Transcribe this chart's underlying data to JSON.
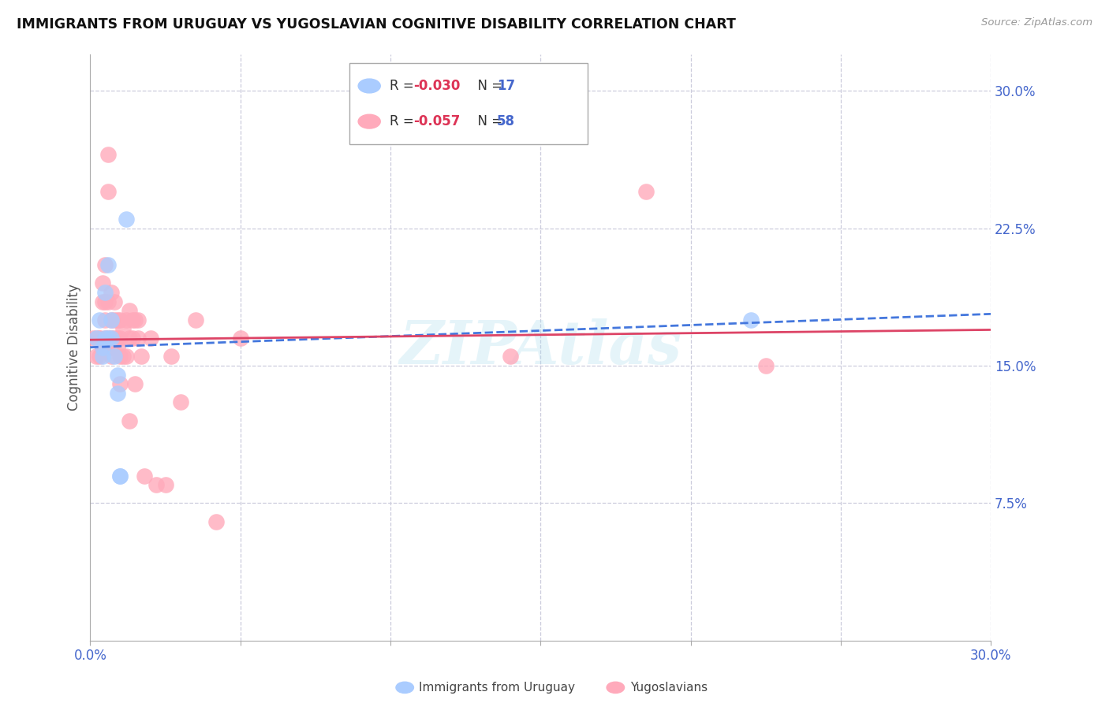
{
  "title": "IMMIGRANTS FROM URUGUAY VS YUGOSLAVIAN COGNITIVE DISABILITY CORRELATION CHART",
  "source": "Source: ZipAtlas.com",
  "ylabel": "Cognitive Disability",
  "right_ytick_vals": [
    0.3,
    0.225,
    0.15,
    0.075
  ],
  "right_ytick_labels": [
    "30.0%",
    "22.5%",
    "15.0%",
    "7.5%"
  ],
  "xmin": 0.0,
  "xmax": 0.3,
  "ymin": 0.0,
  "ymax": 0.32,
  "legend_r1": "-0.030",
  "legend_n1": "17",
  "legend_r2": "-0.057",
  "legend_n2": "58",
  "color_uruguay": "#aaccff",
  "color_yugoslavian": "#ffaabb",
  "trendline_color_uruguay": "#4477dd",
  "trendline_color_yugoslavian": "#dd4466",
  "watermark": "ZIPAtlas",
  "scatter_uruguay_x": [
    0.002,
    0.003,
    0.004,
    0.004,
    0.005,
    0.005,
    0.006,
    0.006,
    0.007,
    0.007,
    0.008,
    0.009,
    0.009,
    0.01,
    0.01,
    0.012,
    0.22
  ],
  "scatter_uruguay_y": [
    0.165,
    0.175,
    0.155,
    0.16,
    0.165,
    0.19,
    0.165,
    0.205,
    0.165,
    0.175,
    0.155,
    0.145,
    0.135,
    0.09,
    0.09,
    0.23,
    0.175
  ],
  "scatter_yugoslavian_x": [
    0.001,
    0.002,
    0.002,
    0.003,
    0.003,
    0.003,
    0.004,
    0.004,
    0.004,
    0.005,
    0.005,
    0.005,
    0.005,
    0.006,
    0.006,
    0.006,
    0.006,
    0.007,
    0.007,
    0.007,
    0.007,
    0.007,
    0.008,
    0.008,
    0.008,
    0.009,
    0.009,
    0.009,
    0.01,
    0.01,
    0.01,
    0.01,
    0.011,
    0.011,
    0.012,
    0.012,
    0.013,
    0.013,
    0.013,
    0.014,
    0.014,
    0.015,
    0.015,
    0.016,
    0.016,
    0.017,
    0.018,
    0.02,
    0.022,
    0.025,
    0.027,
    0.03,
    0.035,
    0.042,
    0.05,
    0.14,
    0.185,
    0.225
  ],
  "scatter_yugoslavian_y": [
    0.165,
    0.165,
    0.155,
    0.165,
    0.165,
    0.155,
    0.195,
    0.185,
    0.16,
    0.165,
    0.205,
    0.185,
    0.175,
    0.265,
    0.245,
    0.185,
    0.165,
    0.19,
    0.175,
    0.165,
    0.16,
    0.155,
    0.185,
    0.175,
    0.165,
    0.175,
    0.165,
    0.16,
    0.175,
    0.165,
    0.155,
    0.14,
    0.17,
    0.155,
    0.175,
    0.155,
    0.18,
    0.165,
    0.12,
    0.175,
    0.165,
    0.175,
    0.14,
    0.175,
    0.165,
    0.155,
    0.09,
    0.165,
    0.085,
    0.085,
    0.155,
    0.13,
    0.175,
    0.065,
    0.165,
    0.155,
    0.245,
    0.15
  ]
}
